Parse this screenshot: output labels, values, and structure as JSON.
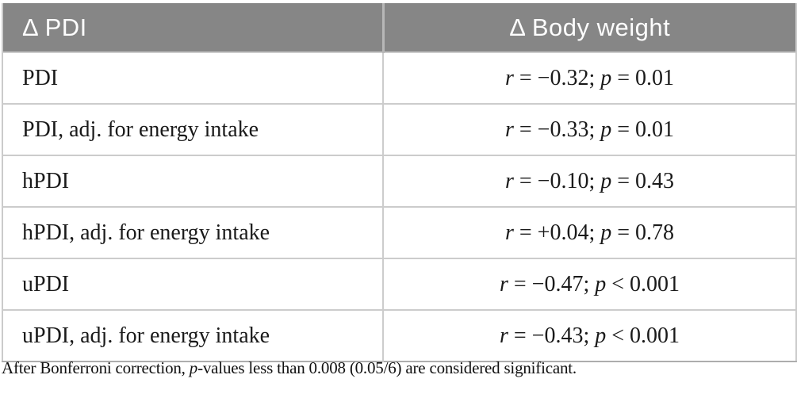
{
  "chart_data": {
    "type": "table",
    "title": "",
    "columns": [
      "Δ PDI",
      "Δ Body weight"
    ],
    "rows": [
      [
        "PDI",
        "r = −0.32; p = 0.01"
      ],
      [
        "PDI, adj. for energy intake",
        "r = −0.33; p = 0.01"
      ],
      [
        "hPDI",
        "r = −0.10; p = 0.43"
      ],
      [
        "hPDI, adj. for energy intake",
        "r = +0.04; p = 0.78"
      ],
      [
        "uPDI",
        "r = −0.47; p < 0.001"
      ],
      [
        "uPDI, adj. for energy intake",
        "r = −0.43; p < 0.001"
      ]
    ],
    "footnote": "After Bonferroni correction, p-values less than 0.008 (0.05/6) are considered significant."
  },
  "table": {
    "header": {
      "col1": "Δ PDI",
      "col2": "Δ Body weight"
    },
    "r_symbol": "r",
    "p_symbol": "p",
    "rows": [
      {
        "label": "PDI",
        "r_rest": " = −0.32; ",
        "p_rest": " = 0.01"
      },
      {
        "label": "PDI, adj. for energy intake",
        "r_rest": " = −0.33; ",
        "p_rest": " = 0.01"
      },
      {
        "label": "hPDI",
        "r_rest": " = −0.10; ",
        "p_rest": " = 0.43"
      },
      {
        "label": "hPDI, adj. for energy intake",
        "r_rest": " = +0.04; ",
        "p_rest": " = 0.78"
      },
      {
        "label": "uPDI",
        "r_rest": " = −0.47; ",
        "p_rest": " < 0.001"
      },
      {
        "label": "uPDI, adj. for energy intake",
        "r_rest": " = −0.43; ",
        "p_rest": " < 0.001"
      }
    ]
  },
  "footnote": {
    "prefix": "After Bonferroni correction, ",
    "p_symbol": "p",
    "suffix": "-values less than 0.008 (0.05/6) are considered significant."
  },
  "colors": {
    "header_background": "#868686",
    "header_text": "#fdfdfd",
    "grid_line": "#cccccc",
    "bottom_border": "#adadad",
    "body_text": "#1a1a1a"
  }
}
